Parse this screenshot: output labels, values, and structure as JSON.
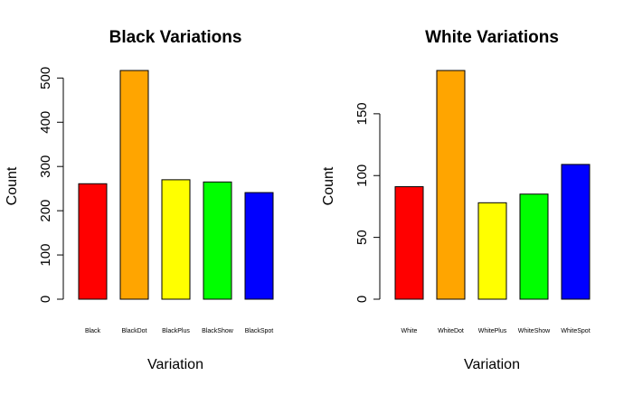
{
  "chart_data": [
    {
      "type": "bar",
      "title": "Black Variations",
      "xlabel": "Variation",
      "ylabel": "Count",
      "categories": [
        "Black",
        "BlackDot",
        "BlackPlus",
        "BlackShow",
        "BlackSpot"
      ],
      "values": [
        261,
        517,
        270,
        265,
        241
      ],
      "colors": [
        "#ff0000",
        "#ffa500",
        "#ffff00",
        "#00ff00",
        "#0000ff"
      ],
      "ylim": [
        0,
        517
      ],
      "yticks": [
        0,
        100,
        200,
        300,
        400,
        500
      ],
      "grid": false
    },
    {
      "type": "bar",
      "title": "White Variations",
      "xlabel": "Variation",
      "ylabel": "Count",
      "categories": [
        "White",
        "WhiteDot",
        "WhitePlus",
        "WhiteShow",
        "WhiteSpot"
      ],
      "values": [
        91,
        185,
        78,
        85,
        109
      ],
      "colors": [
        "#ff0000",
        "#ffa500",
        "#ffff00",
        "#00ff00",
        "#0000ff"
      ],
      "ylim": [
        0,
        185
      ],
      "yticks": [
        0,
        50,
        100,
        150
      ],
      "grid": false
    }
  ]
}
